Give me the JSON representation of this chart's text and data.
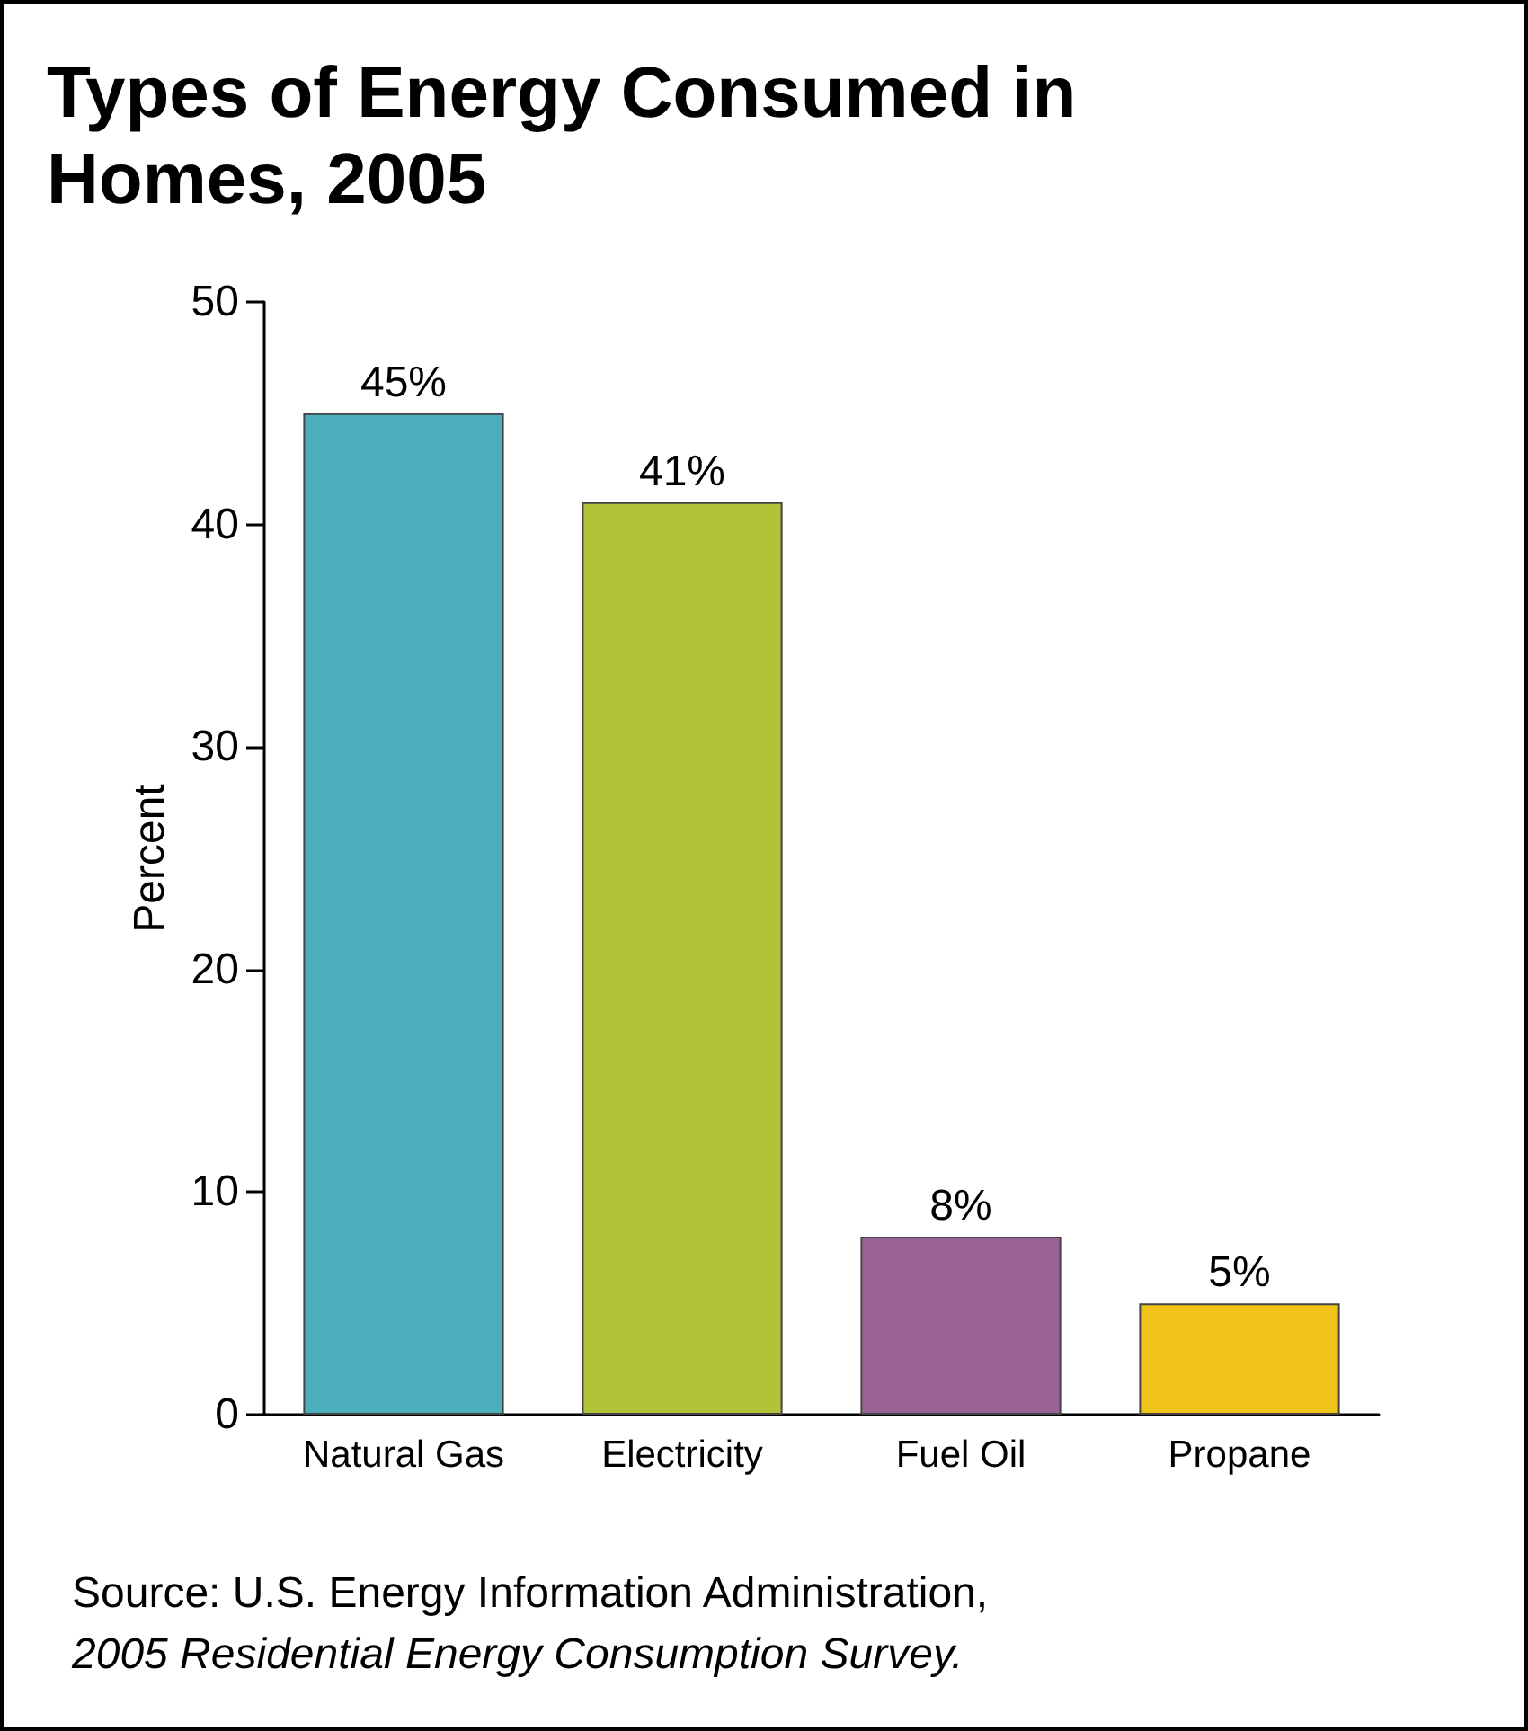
{
  "chart_data": {
    "type": "bar",
    "title": "Types of Energy Consumed in Homes, 2005",
    "ylabel": "Percent",
    "categories": [
      "Natural Gas",
      "Electricity",
      "Fuel Oil",
      "Propane"
    ],
    "values": [
      45,
      41,
      8,
      5
    ],
    "colors": [
      "#4aaebb",
      "#b2c33a",
      "#9b6496",
      "#f0c419"
    ],
    "value_labels": [
      "45%",
      "41%",
      "8%",
      "5%"
    ],
    "ylim": [
      0,
      50
    ],
    "yticks": [
      0,
      10,
      20,
      30,
      40,
      50
    ],
    "grid": false,
    "annotations": [
      "Source: U.S. Energy Information Administration,",
      "2005 Residential Energy Consumption Survey."
    ]
  }
}
